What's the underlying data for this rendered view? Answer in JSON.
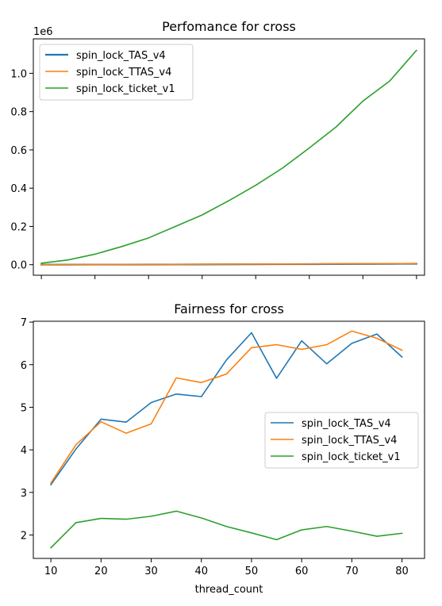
{
  "chart_data": [
    {
      "type": "line",
      "title": "Perfomance for cross",
      "xlabel": "",
      "ylabel": "",
      "offset_text": "1e6",
      "x": [
        10,
        15,
        20,
        25,
        30,
        35,
        40,
        45,
        50,
        55,
        60,
        65,
        70,
        75,
        80
      ],
      "xlim": [
        8.5,
        81.5
      ],
      "ylim": [
        -0.055,
        1.18
      ],
      "yticks": [
        0.0,
        0.2,
        0.4,
        0.6,
        0.8,
        1.0
      ],
      "ytick_labels": [
        "0.0",
        "0.2",
        "0.4",
        "0.6",
        "0.8",
        "1.0"
      ],
      "legend": "upper left",
      "series": [
        {
          "name": "spin_lock_TAS_v4",
          "color": "#1f77b4",
          "width": 2.2,
          "values": [
            0.0002,
            0.0004,
            0.0006,
            0.0008,
            0.001,
            0.0013,
            0.0016,
            0.0019,
            0.0023,
            0.0027,
            0.0031,
            0.0036,
            0.0041,
            0.0046,
            0.0051
          ]
        },
        {
          "name": "spin_lock_TTAS_v4",
          "color": "#ff7f0e",
          "width": 1.6,
          "values": [
            0.0002,
            0.0005,
            0.0008,
            0.0011,
            0.0014,
            0.0018,
            0.0022,
            0.0026,
            0.0031,
            0.0036,
            0.0041,
            0.0047,
            0.0052,
            0.0057,
            0.0062
          ]
        },
        {
          "name": "spin_lock_ticket_v1",
          "color": "#2ca02c",
          "width": 1.6,
          "values": [
            0.008,
            0.025,
            0.055,
            0.095,
            0.14,
            0.2,
            0.26,
            0.335,
            0.415,
            0.505,
            0.61,
            0.72,
            0.855,
            0.96,
            1.12
          ]
        }
      ]
    },
    {
      "type": "line",
      "title": "Fairness for cross",
      "xlabel": "thread_count",
      "ylabel": "",
      "x": [
        10,
        15,
        20,
        25,
        30,
        35,
        40,
        45,
        50,
        55,
        60,
        65,
        70,
        75,
        80
      ],
      "xlim": [
        6.5,
        84.5
      ],
      "xticks": [
        10,
        20,
        30,
        40,
        50,
        60,
        70,
        80
      ],
      "ylim": [
        1.45,
        7.02
      ],
      "yticks": [
        2,
        3,
        4,
        5,
        6,
        7
      ],
      "legend": "center right",
      "series": [
        {
          "name": "spin_lock_TAS_v4",
          "color": "#1f77b4",
          "width": 1.6,
          "values": [
            3.18,
            4.02,
            4.72,
            4.65,
            5.11,
            5.31,
            5.25,
            6.11,
            6.75,
            5.68,
            6.56,
            6.02,
            6.5,
            6.72,
            6.18
          ]
        },
        {
          "name": "spin_lock_TTAS_v4",
          "color": "#ff7f0e",
          "width": 1.6,
          "values": [
            3.22,
            4.12,
            4.66,
            4.39,
            4.61,
            5.69,
            5.58,
            5.78,
            6.4,
            6.47,
            6.36,
            6.47,
            6.79,
            6.62,
            6.34
          ]
        },
        {
          "name": "spin_lock_ticket_v1",
          "color": "#2ca02c",
          "width": 1.6,
          "values": [
            1.7,
            2.29,
            2.39,
            2.37,
            2.44,
            2.56,
            2.4,
            2.2,
            2.05,
            1.89,
            2.12,
            2.2,
            2.09,
            1.97,
            2.04
          ]
        }
      ]
    }
  ]
}
